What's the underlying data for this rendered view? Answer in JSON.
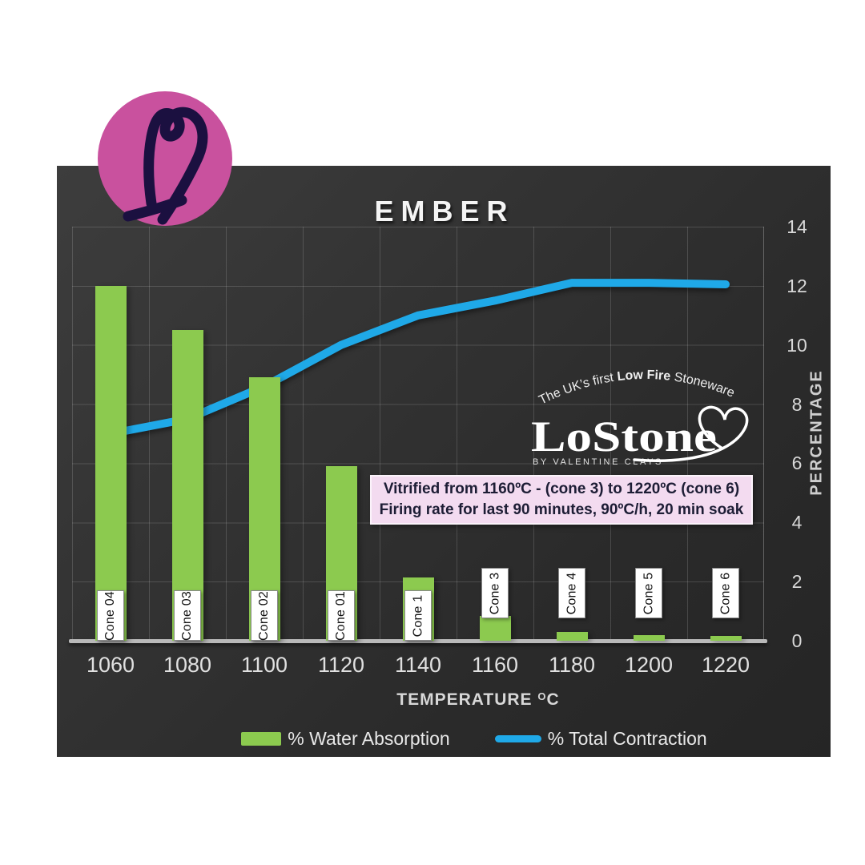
{
  "header": {
    "title": "EMBER"
  },
  "chart_data": {
    "type": "bar+line",
    "title": "EMBER",
    "categories": [
      "1060",
      "1080",
      "1100",
      "1120",
      "1140",
      "1160",
      "1180",
      "1200",
      "1220"
    ],
    "series": [
      {
        "name": "% Water Absorption",
        "type": "bar",
        "color": "#8cca4f",
        "values": [
          12.0,
          10.5,
          8.9,
          5.9,
          2.15,
          0.85,
          0.3,
          0.2,
          0.15
        ]
      },
      {
        "name": "% Total Contraction",
        "type": "line",
        "color": "#1fa9e8",
        "values": [
          7.0,
          7.5,
          8.6,
          10.0,
          11.0,
          11.5,
          12.1,
          12.1,
          12.05
        ]
      }
    ],
    "cone_labels": [
      "Cone 04",
      "Cone 03",
      "Cone 02",
      "Cone 01",
      "Cone 1",
      "Cone 3",
      "Cone 4",
      "Cone 5",
      "Cone 6"
    ],
    "xlabel": "TEMPERATURE ºC",
    "ylabel": "PERCENTAGE",
    "ylim": [
      0,
      14
    ],
    "yticks": [
      0,
      2,
      4,
      6,
      8,
      10,
      12,
      14
    ],
    "grid": true,
    "legend_position": "bottom"
  },
  "axis": {
    "x_title": "TEMPERATURE",
    "x_sup": "O",
    "x_unit": "C",
    "y_title": "PERCENTAGE"
  },
  "annotation": {
    "line1": "Vitrified from 1160ºC - (cone 3) to 1220ºC (cone 6)",
    "line2": "Firing rate for last 90 minutes,  90ºC/h, 20 min soak",
    "bg_color": "#f3dbf0"
  },
  "legend": {
    "water_absorption": "% Water Absorption",
    "total_contraction": "% Total Contraction"
  },
  "logo": {
    "tagline_pre": "The UK’s first ",
    "tagline_bold": "Low Fire",
    "tagline_post": " Stoneware",
    "wordmark": "LoStone",
    "byline": "BY VALENTINE CLAYS"
  },
  "colors": {
    "bar_green": "#8cca4f",
    "line_blue": "#1fa9e8",
    "brand_pink_circle": "#c9519e",
    "heart_navy": "#1b1040",
    "panel_dark": "#2e2e2e"
  }
}
